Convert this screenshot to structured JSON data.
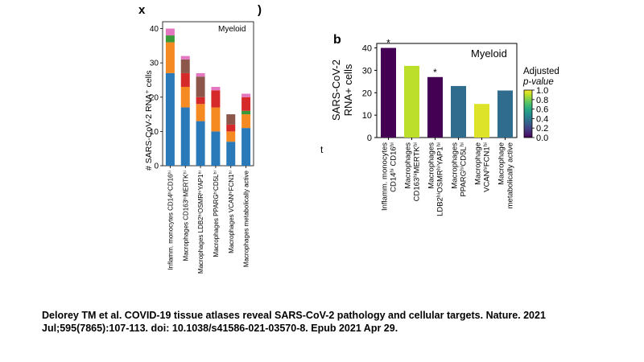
{
  "fragments": {
    "top_left": "x",
    "top_mid": ")",
    "left_mid": "t"
  },
  "chart_data": [
    {
      "type": "bar",
      "stacked": true,
      "panel_label": "",
      "annotation": "Myeloid",
      "xlabel": "",
      "ylabel": "# SARS-CoV-2 RNA⁺ cells",
      "ylim": [
        0,
        42
      ],
      "yticks": [
        0,
        10,
        20,
        30,
        40
      ],
      "categories": [
        "Inflamm. monocytes CD14ʰⁱCD16ʰⁱ",
        "Macrophages CD163ʰⁱMERTKʰⁱ",
        "Macrophages LDB2ʰⁱOSMRʰⁱYAP1ʰⁱ",
        "Macrophages PPARGʰⁱCD5Lʰⁱ",
        "Macrophages VCANʰⁱFCN1ʰⁱ",
        "Macrophages metabolically active"
      ],
      "series": [
        {
          "color": "#2a7ab9",
          "values": [
            27,
            17,
            13,
            10,
            7,
            11
          ]
        },
        {
          "color": "#f58a23",
          "values": [
            9,
            6,
            5,
            7,
            3,
            4
          ]
        },
        {
          "color": "#3a9a3a",
          "values": [
            2,
            0,
            0,
            0,
            0,
            1
          ]
        },
        {
          "color": "#d62a2a",
          "values": [
            0,
            4,
            2,
            5,
            2,
            4
          ]
        },
        {
          "color": "#8c564b",
          "values": [
            0,
            4,
            6,
            0,
            3,
            0
          ]
        },
        {
          "color": "#e377c2",
          "values": [
            2,
            1,
            1,
            1,
            0,
            1
          ]
        }
      ]
    },
    {
      "type": "bar",
      "panel_label": "b",
      "annotation": "Myeloid",
      "xlabel": "",
      "ylabel": "SARS-CoV-2\nRNA+ cells",
      "ylim": [
        0,
        42
      ],
      "yticks": [
        0,
        10,
        20,
        30,
        40
      ],
      "categories": [
        "Inflamm. monocytes|CD14ʰⁱ CD16ʰⁱ",
        "Macrophages|CD163ʰⁱMERTKʰⁱ",
        "Macrophages|LDB2ʰⁱOSMRʰⁱYAP1ʰⁱ",
        "Macrophages|PPARGʰⁱCD5Lʰⁱ",
        "Macrophage|VCANʰⁱFCN1ʰⁱ",
        "Macrophage|metabolically active"
      ],
      "values": [
        40,
        32,
        27,
        23,
        15,
        21
      ],
      "significance": [
        "*",
        "",
        "*",
        "",
        "",
        ""
      ],
      "adjusted_p": [
        0.0,
        0.9,
        0.0,
        0.35,
        0.95,
        0.35
      ],
      "colorbar": {
        "title": "Adjusted\np-value",
        "ticks": [
          0.0,
          0.2,
          0.4,
          0.6,
          0.8,
          1.0
        ],
        "range": [
          0,
          1
        ]
      }
    }
  ],
  "citation": "Delorey TM et al. COVID-19 tissue atlases reveal SARS-CoV-2 pathology and cellular targets. Nature. 2021 Jul;595(7865):107-113. doi: 10.1038/s41586-021-03570-8. Epub 2021 Apr 29."
}
